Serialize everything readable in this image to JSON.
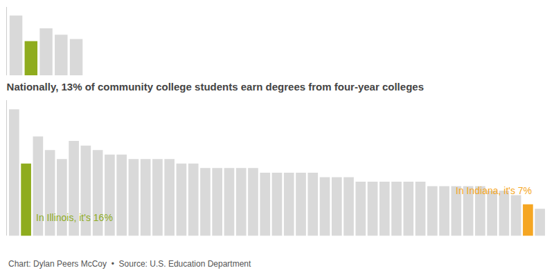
{
  "chart_data": [
    {
      "type": "bar",
      "categories": [
        null,
        null,
        null,
        null,
        null
      ],
      "values": [
        28,
        16,
        22,
        19,
        17
      ],
      "colors": [
        "#d9d9d9",
        "#8fac1e",
        "#d9d9d9",
        "#d9d9d9",
        "#d9d9d9"
      ],
      "ylim": [
        0,
        32
      ],
      "tick_labels": false
    },
    {
      "type": "bar",
      "title": "Nationally, 13% of community college students earn degrees from four-year colleges",
      "categories": [
        null,
        null,
        null,
        null,
        null,
        null,
        null,
        null,
        null,
        null,
        null,
        null,
        null,
        null,
        null,
        null,
        null,
        null,
        null,
        null,
        null,
        null,
        null,
        null,
        null,
        null,
        null,
        null,
        null,
        null,
        null,
        null,
        null,
        null,
        null,
        null,
        null,
        null,
        null,
        null,
        null,
        null,
        null,
        null,
        null
      ],
      "values": [
        28,
        16,
        22,
        19,
        17,
        21,
        20,
        19,
        18,
        18,
        17,
        17,
        17,
        17,
        16,
        16,
        15,
        15,
        15,
        15,
        15,
        14,
        14,
        14,
        14,
        14,
        13,
        13,
        13,
        12,
        12,
        12,
        12,
        12,
        12,
        11,
        11,
        11,
        11,
        11,
        10,
        10,
        9,
        7,
        6
      ],
      "colors": [
        "#d9d9d9",
        "#8fac1e",
        "#d9d9d9",
        "#d9d9d9",
        "#d9d9d9",
        "#d9d9d9",
        "#d9d9d9",
        "#d9d9d9",
        "#d9d9d9",
        "#d9d9d9",
        "#d9d9d9",
        "#d9d9d9",
        "#d9d9d9",
        "#d9d9d9",
        "#d9d9d9",
        "#d9d9d9",
        "#d9d9d9",
        "#d9d9d9",
        "#d9d9d9",
        "#d9d9d9",
        "#d9d9d9",
        "#d9d9d9",
        "#d9d9d9",
        "#d9d9d9",
        "#d9d9d9",
        "#d9d9d9",
        "#d9d9d9",
        "#d9d9d9",
        "#d9d9d9",
        "#d9d9d9",
        "#d9d9d9",
        "#d9d9d9",
        "#d9d9d9",
        "#d9d9d9",
        "#d9d9d9",
        "#d9d9d9",
        "#d9d9d9",
        "#d9d9d9",
        "#d9d9d9",
        "#d9d9d9",
        "#d9d9d9",
        "#d9d9d9",
        "#d9d9d9",
        "#f5a623",
        "#d9d9d9"
      ],
      "ylim": [
        0,
        30
      ],
      "tick_labels": false,
      "annotations": [
        {
          "text": "In Illinois, it's 16%",
          "x": 1,
          "y": 2.5,
          "color": "#8fac1e"
        },
        {
          "text": "In Indiana, it's 7%",
          "x": 43,
          "y": 8.5,
          "color": "#f5a623"
        },
        {
          "text": "Chart: Dylan Peers McCoy  •  Source: U.S. Education Department"
        }
      ]
    }
  ]
}
